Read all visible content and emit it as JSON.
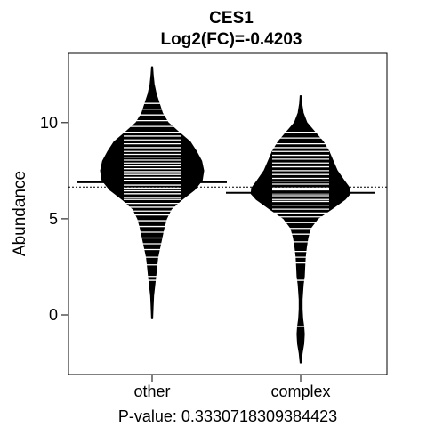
{
  "chart_data": {
    "type": "beanplot",
    "title": "CES1",
    "subtitle": "Log2(FC)=-0.4203",
    "ylabel": "Abundance",
    "xlabel": "P-value: 0.3330718309384423",
    "categories": [
      "other",
      "complex"
    ],
    "ylim": [
      -3.1,
      13.6
    ],
    "yticks": [
      0,
      5,
      10
    ],
    "overall_mean": 6.65,
    "series": [
      {
        "category": "other",
        "group_mean": 6.9,
        "density": [
          [
            -0.2,
            0.01
          ],
          [
            0.5,
            0.02
          ],
          [
            1.0,
            0.03
          ],
          [
            1.5,
            0.05
          ],
          [
            2.0,
            0.07
          ],
          [
            2.5,
            0.09
          ],
          [
            3.0,
            0.11
          ],
          [
            3.5,
            0.15
          ],
          [
            4.0,
            0.19
          ],
          [
            4.5,
            0.23
          ],
          [
            5.0,
            0.28
          ],
          [
            5.5,
            0.37
          ],
          [
            6.0,
            0.58
          ],
          [
            6.5,
            0.82
          ],
          [
            7.0,
            0.97
          ],
          [
            7.5,
            1.0
          ],
          [
            8.0,
            0.96
          ],
          [
            8.5,
            0.86
          ],
          [
            9.0,
            0.74
          ],
          [
            9.5,
            0.52
          ],
          [
            10.0,
            0.31
          ],
          [
            10.5,
            0.2
          ],
          [
            11.0,
            0.14
          ],
          [
            11.5,
            0.08
          ],
          [
            12.0,
            0.04
          ],
          [
            12.5,
            0.02
          ],
          [
            12.9,
            0.01
          ]
        ],
        "observations": [
          1.8,
          2.0,
          2.6,
          3.0,
          3.4,
          3.7,
          4.0,
          4.3,
          4.6,
          4.9,
          5.2,
          5.4,
          5.6,
          5.8,
          6.0,
          6.1,
          6.3,
          6.45,
          6.6,
          6.75,
          6.9,
          7.0,
          7.15,
          7.3,
          7.45,
          7.6,
          7.75,
          7.9,
          8.05,
          8.2,
          8.35,
          8.5,
          8.7,
          8.9,
          9.1,
          9.3,
          9.5,
          9.8,
          10.1,
          10.4,
          10.7,
          11.0
        ]
      },
      {
        "category": "complex",
        "group_mean": 6.35,
        "density": [
          [
            -2.5,
            0.01
          ],
          [
            -2.0,
            0.03
          ],
          [
            -1.5,
            0.06
          ],
          [
            -1.0,
            0.07
          ],
          [
            -0.6,
            0.06
          ],
          [
            -0.2,
            0.04
          ],
          [
            0.3,
            0.03
          ],
          [
            0.8,
            0.03
          ],
          [
            1.2,
            0.04
          ],
          [
            1.6,
            0.05
          ],
          [
            2.0,
            0.07
          ],
          [
            2.5,
            0.08
          ],
          [
            3.0,
            0.09
          ],
          [
            3.5,
            0.11
          ],
          [
            4.0,
            0.14
          ],
          [
            4.5,
            0.19
          ],
          [
            5.0,
            0.33
          ],
          [
            5.5,
            0.6
          ],
          [
            6.0,
            0.86
          ],
          [
            6.3,
            0.96
          ],
          [
            6.6,
            0.95
          ],
          [
            7.0,
            0.84
          ],
          [
            7.5,
            0.71
          ],
          [
            8.0,
            0.63
          ],
          [
            8.5,
            0.55
          ],
          [
            9.0,
            0.44
          ],
          [
            9.5,
            0.28
          ],
          [
            10.0,
            0.12
          ],
          [
            10.5,
            0.05
          ],
          [
            11.0,
            0.02
          ],
          [
            11.4,
            0.01
          ]
        ],
        "observations": [
          -0.6,
          1.8,
          2.7,
          3.0,
          3.3,
          3.8,
          4.2,
          4.5,
          4.8,
          5.1,
          5.3,
          5.5,
          5.7,
          5.9,
          6.0,
          6.2,
          6.3,
          6.5,
          6.6,
          6.8,
          6.95,
          7.1,
          7.3,
          7.5,
          7.7,
          7.9,
          8.1,
          8.3,
          8.5,
          8.7,
          8.9,
          9.2,
          9.5
        ]
      }
    ]
  }
}
